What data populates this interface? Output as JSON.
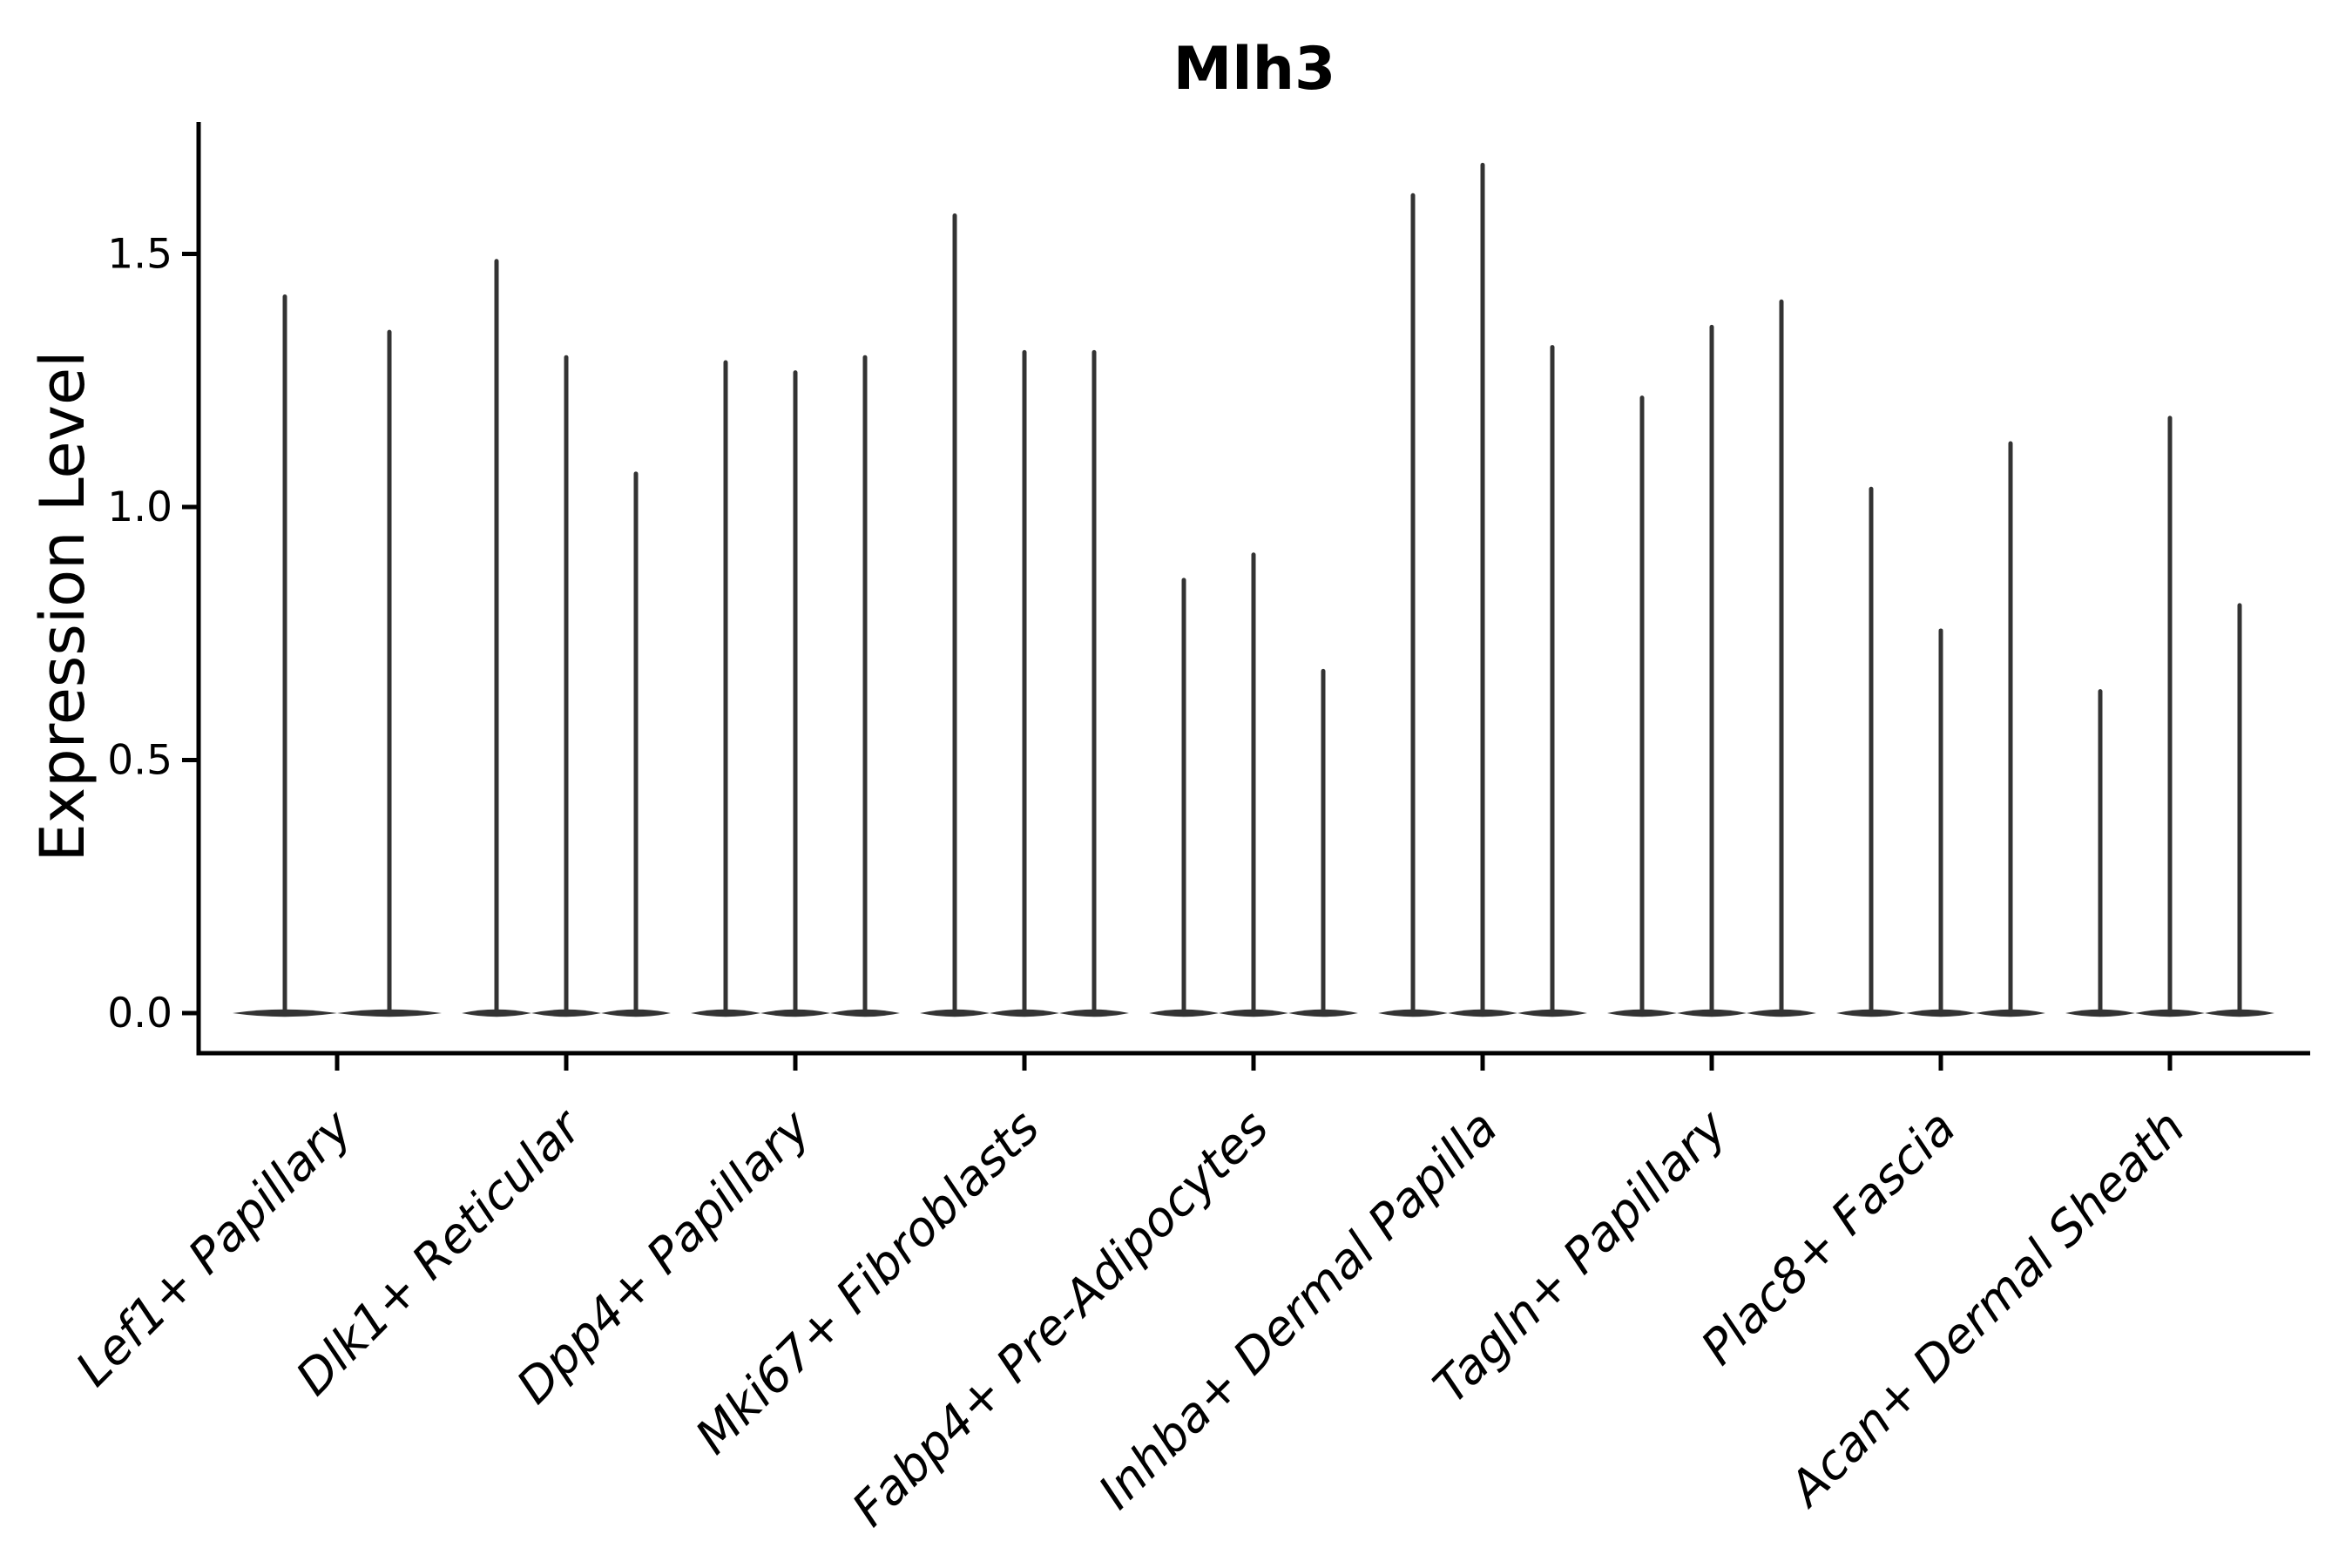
{
  "figure_title": "Mlh3",
  "axes": {
    "ylabel": "Expression Level",
    "ytick_labels": [
      "0.0",
      "0.5",
      "1.0",
      "1.5"
    ],
    "xtick_labels": [
      "Lef1+ Papillary",
      "Dlk1+ Reticular",
      "Dpp4+ Papillary",
      "Mki67+ Fibroblasts",
      "Fabp4+ Pre-Adipocytes",
      "Inhba+ Dermal Papilla",
      "Tagln+ Papillary",
      "Plac8+ Fascia",
      "Acan+ Dermal Sheath"
    ]
  },
  "colors": {
    "background": "#ffffff",
    "violin_fill": "#333333",
    "axis": "#000000",
    "text": "#000000"
  },
  "chart_data": {
    "type": "violin",
    "title": "Mlh3",
    "xlabel": "",
    "ylabel": "Expression Level",
    "ylim": [
      -0.08,
      1.76
    ],
    "yticks": [
      0.0,
      0.5,
      1.0,
      1.5
    ],
    "grid": false,
    "legend_position": "none",
    "violin_style": "density concentrated at 0 (wide flat base on the baseline) with a thin vertical spike reaching each violin's maximum expression value",
    "fill_color": "#333333",
    "categories": [
      "Lef1+ Papillary",
      "Dlk1+ Reticular",
      "Dpp4+ Papillary",
      "Mki67+ Fibroblasts",
      "Fabp4+ Pre-Adipocytes",
      "Inhba+ Dermal Papilla",
      "Tagln+ Papillary",
      "Plac8+ Fascia",
      "Acan+ Dermal Sheath"
    ],
    "groups": [
      {
        "category": "Lef1+ Papillary",
        "violin_maxima": [
          1.42,
          1.35
        ]
      },
      {
        "category": "Dlk1+ Reticular",
        "violin_maxima": [
          1.49,
          1.3,
          1.07
        ]
      },
      {
        "category": "Dpp4+ Papillary",
        "violin_maxima": [
          1.29,
          1.27,
          1.3
        ]
      },
      {
        "category": "Mki67+ Fibroblasts",
        "violin_maxima": [
          1.58,
          1.31,
          1.31
        ]
      },
      {
        "category": "Fabp4+ Pre-Adipocytes",
        "violin_maxima": [
          0.86,
          0.91,
          0.68
        ]
      },
      {
        "category": "Inhba+ Dermal Papilla",
        "violin_maxima": [
          1.62,
          1.68,
          1.32
        ]
      },
      {
        "category": "Tagln+ Papillary",
        "violin_maxima": [
          1.22,
          1.36,
          1.41
        ]
      },
      {
        "category": "Plac8+ Fascia",
        "violin_maxima": [
          1.04,
          0.76,
          1.13
        ]
      },
      {
        "category": "Acan+ Dermal Sheath",
        "violin_maxima": [
          0.64,
          1.18,
          0.81
        ]
      }
    ]
  }
}
